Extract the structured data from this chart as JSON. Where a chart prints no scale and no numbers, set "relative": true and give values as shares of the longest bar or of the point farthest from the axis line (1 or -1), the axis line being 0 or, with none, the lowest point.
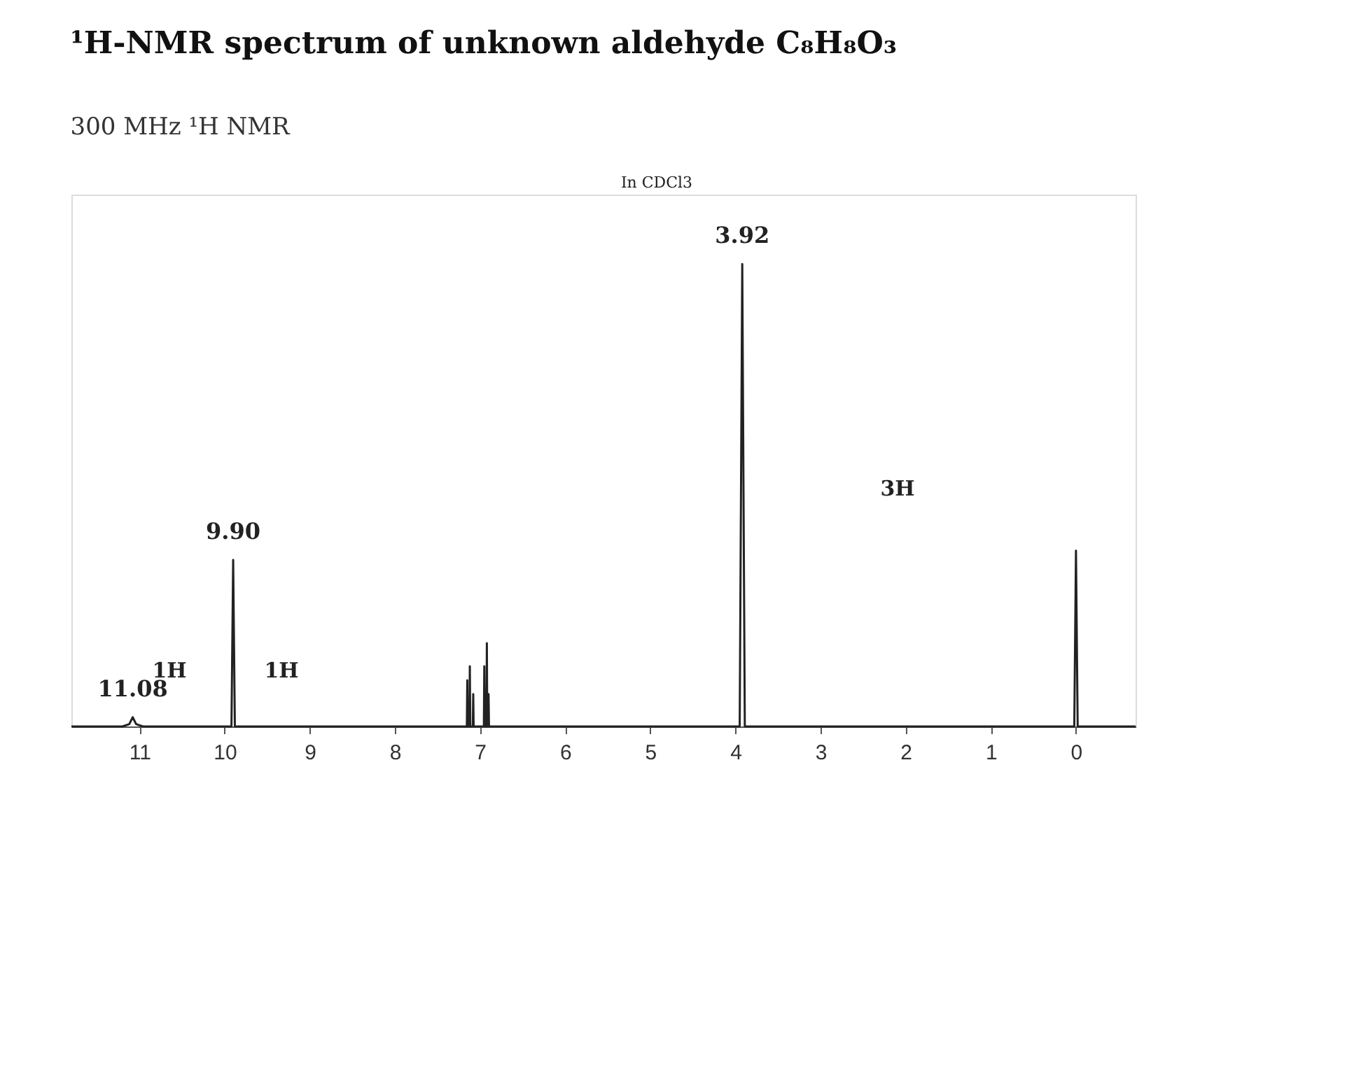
{
  "chart_data": {
    "type": "line",
    "title": "¹H-NMR spectrum of unknown aldehyde C₈H₈O₃",
    "subtitle": "300 MHz ¹H NMR",
    "relative": true,
    "x": [
      11.8,
      11.2,
      11.12,
      11.08,
      11.04,
      10.96,
      9.92,
      9.9,
      9.88,
      7.2,
      7.155,
      7.15,
      7.145,
      7.125,
      7.12,
      7.115,
      7.085,
      7.08,
      7.075,
      6.955,
      6.95,
      6.945,
      6.925,
      6.92,
      6.915,
      6.905,
      6.9,
      6.895,
      3.95,
      3.92,
      3.89,
      0.02,
      0.0,
      -0.02,
      -0.7
    ],
    "series": [
      {
        "color": "#222222",
        "values": [
          0,
          0,
          0.005,
          0.02,
          0.005,
          0,
          0,
          0.36,
          0,
          0,
          0,
          0.1,
          0,
          0,
          0.13,
          0,
          0,
          0.07,
          0,
          0,
          0.13,
          0,
          0,
          0.18,
          0,
          0,
          0.07,
          0,
          0,
          1,
          0,
          0,
          0.38,
          0,
          0
        ]
      }
    ],
    "xlim": [
      11.8,
      -0.7
    ],
    "xticks": [
      11,
      10,
      9,
      8,
      7,
      6,
      5,
      4,
      3,
      2,
      1,
      0
    ],
    "annotations": [
      {
        "text": "11.08",
        "x": 11.08,
        "y": 0.02
      },
      {
        "text": "9.90",
        "x": 9.9,
        "y": 0.36
      },
      {
        "text": "3.92",
        "x": 3.92,
        "y": 1
      },
      "1H",
      "1H",
      "3H",
      "In CDCl3"
    ],
    "grid": false,
    "marker": "none",
    "line_style": "solid",
    "legend": false,
    "tick_labels": "x"
  }
}
